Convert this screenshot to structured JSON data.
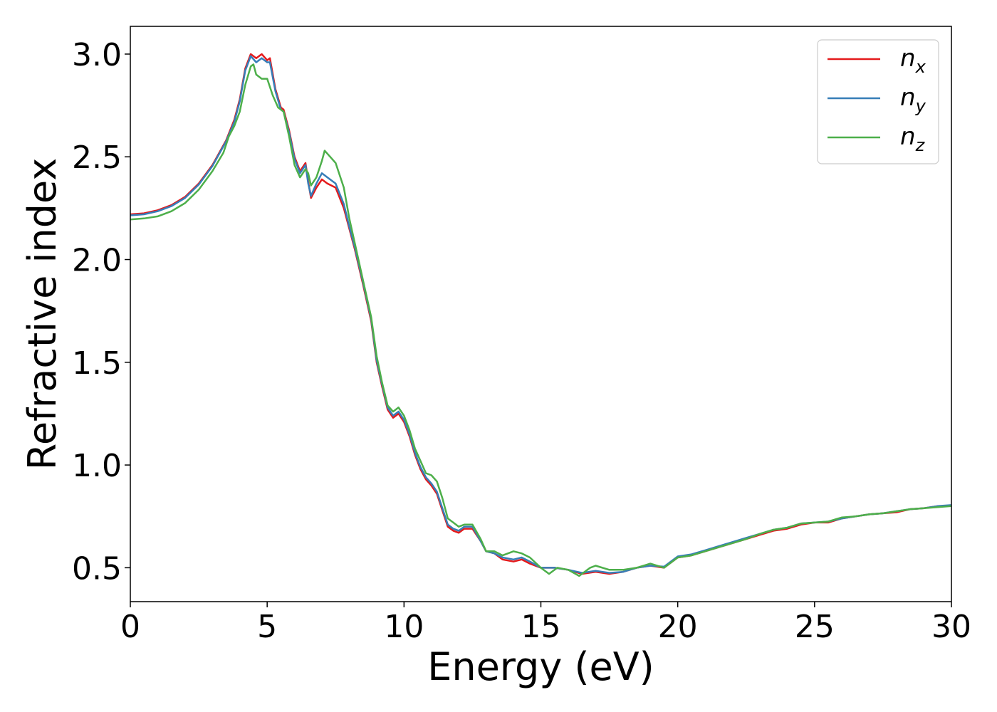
{
  "chart_data": {
    "type": "line",
    "title": "",
    "xlabel": "Energy (eV)",
    "ylabel": "Refractive index",
    "xlim": [
      0,
      30
    ],
    "ylim": [
      0.335,
      3.135
    ],
    "xticks": [
      0,
      5,
      10,
      15,
      20,
      25,
      30
    ],
    "xtick_labels": [
      "0",
      "5",
      "10",
      "15",
      "20",
      "25",
      "30"
    ],
    "yticks": [
      0.5,
      1.0,
      1.5,
      2.0,
      2.5,
      3.0
    ],
    "ytick_labels": [
      "0.5",
      "1.0",
      "1.5",
      "2.0",
      "2.5",
      "3.0"
    ],
    "grid": false,
    "legend_position": "top-right",
    "series": [
      {
        "name": "n_x",
        "base": "n",
        "sub": "x",
        "color": "#e41a1c",
        "points": [
          [
            0,
            2.22
          ],
          [
            0.5,
            2.225
          ],
          [
            1,
            2.24
          ],
          [
            1.5,
            2.265
          ],
          [
            2,
            2.305
          ],
          [
            2.5,
            2.37
          ],
          [
            3,
            2.46
          ],
          [
            3.5,
            2.58
          ],
          [
            3.8,
            2.68
          ],
          [
            4.0,
            2.78
          ],
          [
            4.2,
            2.93
          ],
          [
            4.4,
            3.0
          ],
          [
            4.6,
            2.98
          ],
          [
            4.8,
            3.0
          ],
          [
            5.0,
            2.97
          ],
          [
            5.1,
            2.98
          ],
          [
            5.3,
            2.83
          ],
          [
            5.5,
            2.74
          ],
          [
            5.6,
            2.73
          ],
          [
            5.8,
            2.63
          ],
          [
            6.0,
            2.5
          ],
          [
            6.2,
            2.43
          ],
          [
            6.4,
            2.47
          ],
          [
            6.5,
            2.38
          ],
          [
            6.6,
            2.3
          ],
          [
            6.8,
            2.35
          ],
          [
            7.0,
            2.39
          ],
          [
            7.2,
            2.37
          ],
          [
            7.5,
            2.35
          ],
          [
            7.8,
            2.25
          ],
          [
            8.0,
            2.15
          ],
          [
            8.2,
            2.05
          ],
          [
            8.5,
            1.88
          ],
          [
            8.8,
            1.7
          ],
          [
            9.0,
            1.5
          ],
          [
            9.2,
            1.38
          ],
          [
            9.4,
            1.27
          ],
          [
            9.6,
            1.23
          ],
          [
            9.8,
            1.25
          ],
          [
            10.0,
            1.21
          ],
          [
            10.2,
            1.14
          ],
          [
            10.4,
            1.05
          ],
          [
            10.6,
            0.98
          ],
          [
            10.8,
            0.93
          ],
          [
            11.0,
            0.9
          ],
          [
            11.2,
            0.86
          ],
          [
            11.4,
            0.78
          ],
          [
            11.6,
            0.7
          ],
          [
            11.8,
            0.68
          ],
          [
            12.0,
            0.67
          ],
          [
            12.2,
            0.69
          ],
          [
            12.5,
            0.69
          ],
          [
            12.8,
            0.63
          ],
          [
            13.0,
            0.58
          ],
          [
            13.3,
            0.57
          ],
          [
            13.6,
            0.54
          ],
          [
            14.0,
            0.53
          ],
          [
            14.3,
            0.54
          ],
          [
            14.6,
            0.52
          ],
          [
            15.0,
            0.5
          ],
          [
            15.5,
            0.5
          ],
          [
            16.0,
            0.49
          ],
          [
            16.5,
            0.47
          ],
          [
            17.0,
            0.48
          ],
          [
            17.5,
            0.47
          ],
          [
            18.0,
            0.48
          ],
          [
            18.5,
            0.5
          ],
          [
            19.0,
            0.51
          ],
          [
            19.5,
            0.5
          ],
          [
            20.0,
            0.55
          ],
          [
            20.5,
            0.56
          ],
          [
            21.0,
            0.58
          ],
          [
            21.5,
            0.6
          ],
          [
            22.0,
            0.62
          ],
          [
            22.5,
            0.64
          ],
          [
            23.0,
            0.66
          ],
          [
            23.5,
            0.68
          ],
          [
            24.0,
            0.69
          ],
          [
            24.5,
            0.71
          ],
          [
            25.0,
            0.72
          ],
          [
            25.5,
            0.72
          ],
          [
            26.0,
            0.74
          ],
          [
            26.5,
            0.75
          ],
          [
            27.0,
            0.76
          ],
          [
            27.5,
            0.765
          ],
          [
            28.0,
            0.77
          ],
          [
            28.5,
            0.785
          ],
          [
            29.0,
            0.79
          ],
          [
            29.5,
            0.8
          ],
          [
            30,
            0.8
          ]
        ]
      },
      {
        "name": "n_y",
        "base": "n",
        "sub": "y",
        "color": "#377eb8",
        "points": [
          [
            0,
            2.215
          ],
          [
            0.5,
            2.22
          ],
          [
            1,
            2.235
          ],
          [
            1.5,
            2.26
          ],
          [
            2,
            2.3
          ],
          [
            2.5,
            2.365
          ],
          [
            3,
            2.455
          ],
          [
            3.5,
            2.575
          ],
          [
            3.8,
            2.67
          ],
          [
            4.0,
            2.77
          ],
          [
            4.2,
            2.92
          ],
          [
            4.4,
            2.99
          ],
          [
            4.6,
            2.96
          ],
          [
            4.8,
            2.98
          ],
          [
            5.0,
            2.96
          ],
          [
            5.1,
            2.96
          ],
          [
            5.3,
            2.82
          ],
          [
            5.5,
            2.73
          ],
          [
            5.6,
            2.72
          ],
          [
            5.8,
            2.62
          ],
          [
            6.0,
            2.49
          ],
          [
            6.2,
            2.42
          ],
          [
            6.4,
            2.46
          ],
          [
            6.5,
            2.37
          ],
          [
            6.6,
            2.31
          ],
          [
            6.8,
            2.37
          ],
          [
            7.0,
            2.42
          ],
          [
            7.2,
            2.4
          ],
          [
            7.5,
            2.37
          ],
          [
            7.8,
            2.27
          ],
          [
            8.0,
            2.16
          ],
          [
            8.2,
            2.06
          ],
          [
            8.5,
            1.89
          ],
          [
            8.8,
            1.71
          ],
          [
            9.0,
            1.51
          ],
          [
            9.2,
            1.39
          ],
          [
            9.4,
            1.28
          ],
          [
            9.6,
            1.24
          ],
          [
            9.8,
            1.26
          ],
          [
            10.0,
            1.22
          ],
          [
            10.2,
            1.15
          ],
          [
            10.4,
            1.06
          ],
          [
            10.6,
            0.99
          ],
          [
            10.8,
            0.94
          ],
          [
            11.0,
            0.91
          ],
          [
            11.2,
            0.87
          ],
          [
            11.4,
            0.79
          ],
          [
            11.6,
            0.71
          ],
          [
            11.8,
            0.69
          ],
          [
            12.0,
            0.68
          ],
          [
            12.2,
            0.7
          ],
          [
            12.5,
            0.7
          ],
          [
            12.8,
            0.63
          ],
          [
            13.0,
            0.58
          ],
          [
            13.3,
            0.57
          ],
          [
            13.6,
            0.55
          ],
          [
            14.0,
            0.54
          ],
          [
            14.3,
            0.55
          ],
          [
            14.6,
            0.53
          ],
          [
            15.0,
            0.5
          ],
          [
            15.5,
            0.5
          ],
          [
            16.0,
            0.49
          ],
          [
            16.5,
            0.475
          ],
          [
            17.0,
            0.485
          ],
          [
            17.5,
            0.475
          ],
          [
            18.0,
            0.48
          ],
          [
            18.5,
            0.5
          ],
          [
            19.0,
            0.51
          ],
          [
            19.5,
            0.505
          ],
          [
            20.0,
            0.555
          ],
          [
            20.5,
            0.565
          ],
          [
            21.0,
            0.585
          ],
          [
            21.5,
            0.605
          ],
          [
            22.0,
            0.625
          ],
          [
            22.5,
            0.645
          ],
          [
            23.0,
            0.665
          ],
          [
            23.5,
            0.685
          ],
          [
            24.0,
            0.695
          ],
          [
            24.5,
            0.715
          ],
          [
            25.0,
            0.72
          ],
          [
            25.5,
            0.725
          ],
          [
            26.0,
            0.74
          ],
          [
            26.5,
            0.75
          ],
          [
            27.0,
            0.76
          ],
          [
            27.5,
            0.765
          ],
          [
            28.0,
            0.775
          ],
          [
            28.5,
            0.785
          ],
          [
            29.0,
            0.79
          ],
          [
            29.5,
            0.8
          ],
          [
            30,
            0.805
          ]
        ]
      },
      {
        "name": "n_z",
        "base": "n",
        "sub": "z",
        "color": "#4daf4a",
        "points": [
          [
            0,
            2.195
          ],
          [
            0.5,
            2.2
          ],
          [
            1,
            2.21
          ],
          [
            1.5,
            2.235
          ],
          [
            2,
            2.275
          ],
          [
            2.5,
            2.34
          ],
          [
            3,
            2.43
          ],
          [
            3.4,
            2.52
          ],
          [
            3.6,
            2.6
          ],
          [
            3.8,
            2.65
          ],
          [
            4.0,
            2.72
          ],
          [
            4.2,
            2.85
          ],
          [
            4.4,
            2.94
          ],
          [
            4.5,
            2.95
          ],
          [
            4.6,
            2.9
          ],
          [
            4.8,
            2.88
          ],
          [
            5.0,
            2.88
          ],
          [
            5.2,
            2.8
          ],
          [
            5.4,
            2.74
          ],
          [
            5.6,
            2.72
          ],
          [
            5.8,
            2.6
          ],
          [
            6.0,
            2.46
          ],
          [
            6.2,
            2.4
          ],
          [
            6.4,
            2.44
          ],
          [
            6.5,
            2.42
          ],
          [
            6.6,
            2.36
          ],
          [
            6.8,
            2.4
          ],
          [
            7.0,
            2.48
          ],
          [
            7.1,
            2.53
          ],
          [
            7.3,
            2.5
          ],
          [
            7.5,
            2.47
          ],
          [
            7.8,
            2.35
          ],
          [
            8.0,
            2.2
          ],
          [
            8.2,
            2.08
          ],
          [
            8.5,
            1.9
          ],
          [
            8.8,
            1.72
          ],
          [
            9.0,
            1.53
          ],
          [
            9.2,
            1.4
          ],
          [
            9.4,
            1.29
          ],
          [
            9.6,
            1.26
          ],
          [
            9.8,
            1.28
          ],
          [
            10.0,
            1.24
          ],
          [
            10.2,
            1.17
          ],
          [
            10.4,
            1.08
          ],
          [
            10.6,
            1.02
          ],
          [
            10.8,
            0.96
          ],
          [
            11.0,
            0.95
          ],
          [
            11.2,
            0.92
          ],
          [
            11.4,
            0.84
          ],
          [
            11.6,
            0.74
          ],
          [
            11.8,
            0.72
          ],
          [
            12.0,
            0.7
          ],
          [
            12.2,
            0.71
          ],
          [
            12.5,
            0.71
          ],
          [
            12.8,
            0.64
          ],
          [
            13.0,
            0.58
          ],
          [
            13.3,
            0.58
          ],
          [
            13.6,
            0.56
          ],
          [
            14.0,
            0.58
          ],
          [
            14.3,
            0.57
          ],
          [
            14.6,
            0.55
          ],
          [
            15.0,
            0.5
          ],
          [
            15.3,
            0.47
          ],
          [
            15.6,
            0.5
          ],
          [
            16.0,
            0.49
          ],
          [
            16.4,
            0.46
          ],
          [
            16.8,
            0.5
          ],
          [
            17.0,
            0.51
          ],
          [
            17.5,
            0.49
          ],
          [
            18.0,
            0.49
          ],
          [
            18.5,
            0.5
          ],
          [
            19.0,
            0.52
          ],
          [
            19.5,
            0.5
          ],
          [
            20.0,
            0.55
          ],
          [
            20.5,
            0.56
          ],
          [
            21.0,
            0.58
          ],
          [
            21.5,
            0.6
          ],
          [
            22.0,
            0.62
          ],
          [
            22.5,
            0.64
          ],
          [
            23.0,
            0.665
          ],
          [
            23.5,
            0.685
          ],
          [
            24.0,
            0.695
          ],
          [
            24.5,
            0.715
          ],
          [
            25.0,
            0.72
          ],
          [
            25.5,
            0.725
          ],
          [
            26.0,
            0.745
          ],
          [
            26.5,
            0.75
          ],
          [
            27.0,
            0.76
          ],
          [
            27.5,
            0.765
          ],
          [
            28.0,
            0.775
          ],
          [
            28.5,
            0.785
          ],
          [
            29.0,
            0.79
          ],
          [
            29.5,
            0.795
          ],
          [
            30,
            0.8
          ]
        ]
      }
    ]
  }
}
